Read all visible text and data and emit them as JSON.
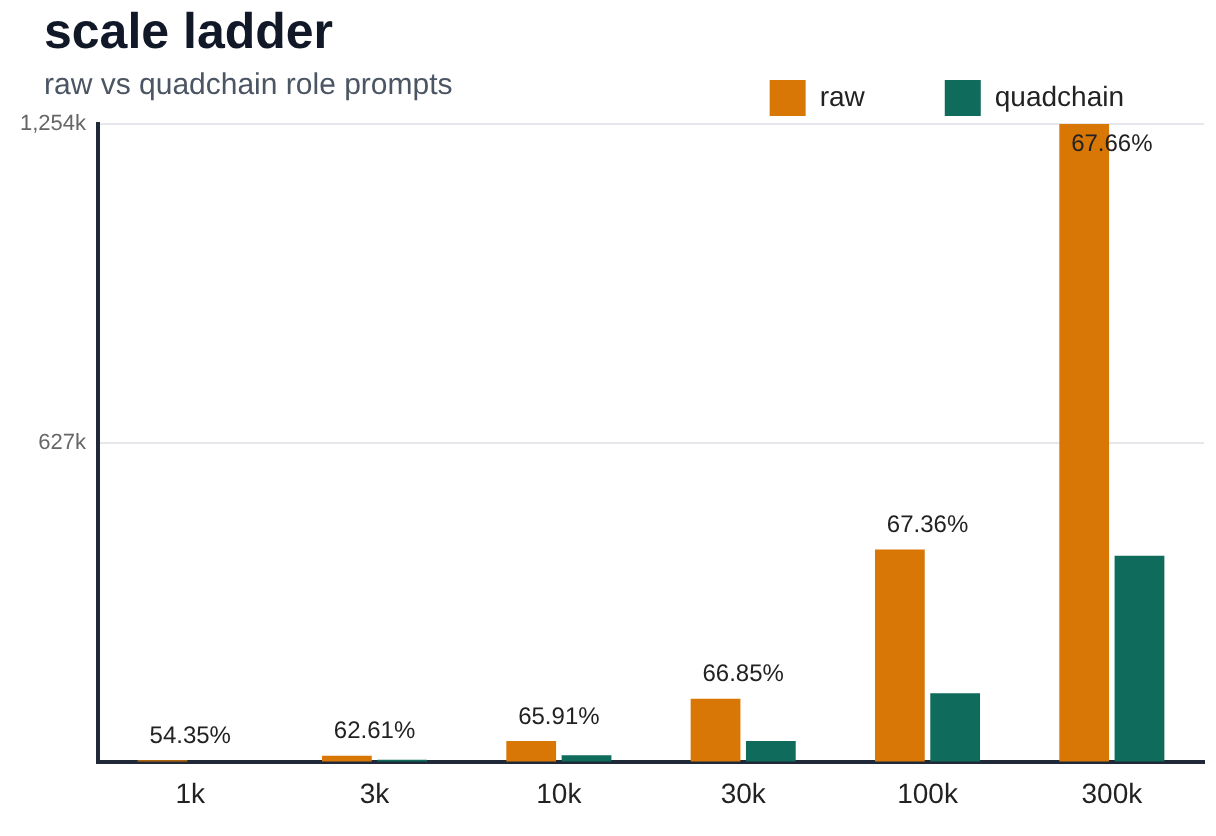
{
  "chart_data": {
    "type": "bar",
    "title": "scale ladder",
    "subtitle": "raw vs quadchain role prompts",
    "categories": [
      "1k",
      "3k",
      "10k",
      "30k",
      "100k",
      "300k"
    ],
    "series": [
      {
        "name": "raw",
        "color": "#d97706",
        "values": [
          4,
          13,
          42,
          125,
          418,
          1254
        ]
      },
      {
        "name": "quadchain",
        "color": "#0f6b5c",
        "values": [
          2,
          5,
          14,
          42,
          136,
          406
        ]
      }
    ],
    "ylim": [
      0,
      1254
    ],
    "yticks": [
      {
        "value": 0,
        "label": null
      },
      {
        "value": 627,
        "label": "627k"
      },
      {
        "value": 1254,
        "label": "1,254k"
      }
    ],
    "grid": "y",
    "legend": "top right",
    "annotations": [
      {
        "text": "54.35%",
        "x": "1k",
        "y": 4
      },
      {
        "text": "62.61%",
        "x": "3k",
        "y": 13
      },
      {
        "text": "65.91%",
        "x": "10k",
        "y": 42
      },
      {
        "text": "66.85%",
        "x": "30k",
        "y": 125
      },
      {
        "text": "67.36%",
        "x": "100k",
        "y": 418
      },
      {
        "text": "67.66%",
        "x": "300k",
        "y": 1254
      }
    ]
  }
}
